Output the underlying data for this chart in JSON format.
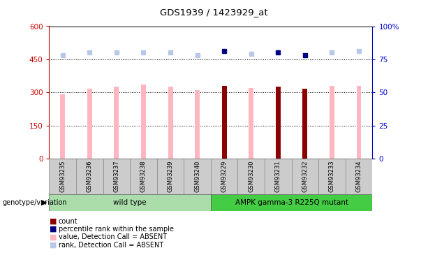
{
  "title": "GDS1939 / 1423929_at",
  "samples": [
    "GSM93235",
    "GSM93236",
    "GSM93237",
    "GSM93238",
    "GSM93239",
    "GSM93240",
    "GSM93229",
    "GSM93230",
    "GSM93231",
    "GSM93232",
    "GSM93233",
    "GSM93234"
  ],
  "bar_values": [
    290,
    315,
    325,
    335,
    325,
    310,
    330,
    320,
    325,
    318,
    328,
    330
  ],
  "bar_is_dark": [
    false,
    false,
    false,
    false,
    false,
    false,
    true,
    false,
    true,
    true,
    false,
    false
  ],
  "rank_values": [
    78,
    80,
    80,
    80,
    80,
    78,
    81,
    79,
    80,
    78,
    80,
    81
  ],
  "rank_is_dark": [
    false,
    false,
    false,
    false,
    false,
    false,
    true,
    false,
    true,
    true,
    false,
    false
  ],
  "groups": [
    {
      "label": "wild type",
      "start": 0,
      "end": 6,
      "color": "#aaddaa"
    },
    {
      "label": "AMPK gamma-3 R225Q mutant",
      "start": 6,
      "end": 12,
      "color": "#44cc44"
    }
  ],
  "ylim_left": [
    0,
    600
  ],
  "ylim_right": [
    0,
    100
  ],
  "yticks_left": [
    0,
    150,
    300,
    450,
    600
  ],
  "yticks_right": [
    0,
    25,
    50,
    75,
    100
  ],
  "ytick_labels_right": [
    "0",
    "25",
    "50",
    "75",
    "100%"
  ],
  "hlines": [
    150,
    300,
    450
  ],
  "bar_color_absent": "#ffb6c1",
  "bar_color_present": "#8B0000",
  "rank_color_absent": "#b8c8e8",
  "rank_color_present": "#000080",
  "left_axis_color": "#cc0000",
  "right_axis_color": "#0000cc",
  "legend_items": [
    {
      "color": "#8B0000",
      "label": "count"
    },
    {
      "color": "#000080",
      "label": "percentile rank within the sample"
    },
    {
      "color": "#ffb6c1",
      "label": "value, Detection Call = ABSENT"
    },
    {
      "color": "#b8c8e8",
      "label": "rank, Detection Call = ABSENT"
    }
  ]
}
